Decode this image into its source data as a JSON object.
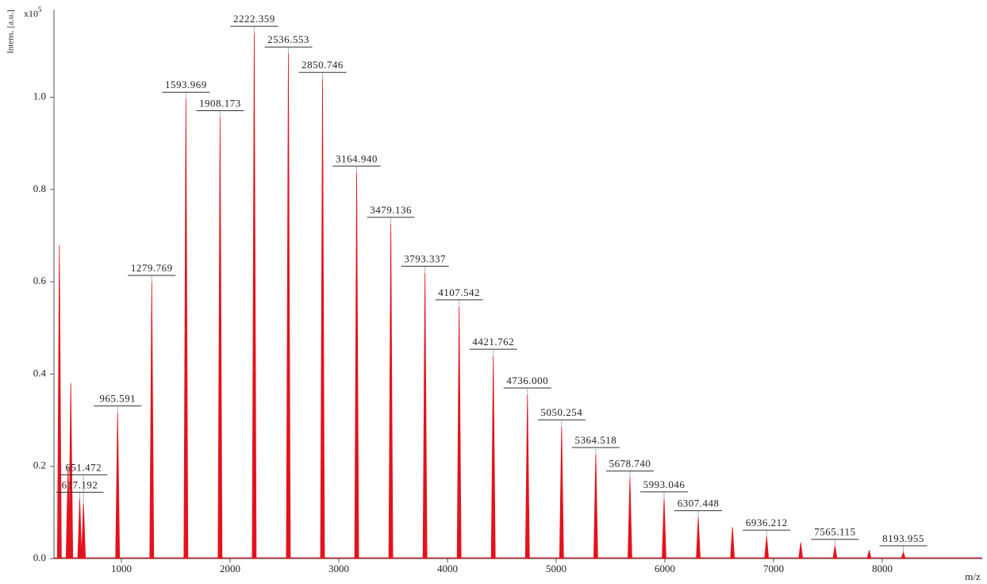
{
  "chart_data": {
    "type": "spectrum",
    "y_label": "Intens. [a.u.]",
    "y_multiplier": "x10",
    "y_multiplier_exponent": "5",
    "x_label": "m/z",
    "color": "#e4121c",
    "grid": false,
    "xlim": [
      380,
      8920
    ],
    "xticks": [
      1000,
      2000,
      3000,
      4000,
      5000,
      6000,
      7000,
      8000
    ],
    "ylim": [
      0,
      1.19
    ],
    "yticks": [
      {
        "value": 0,
        "label": "0.0"
      },
      0.2,
      0.4,
      0.6,
      0.8,
      {
        "value": 1,
        "label": "1.0"
      }
    ],
    "x": [
      430,
      510,
      535,
      617.192,
      651.472,
      965.591,
      1279.769,
      1593.969,
      1908.173,
      2222.359,
      2536.553,
      2850.746,
      3164.94,
      3479.136,
      3793.337,
      4107.542,
      4421.762,
      4736,
      5050.254,
      5364.518,
      5678.74,
      5993.046,
      6307.448,
      6622,
      6936.212,
      7250,
      7565.115,
      7880,
      8193.955
    ],
    "x_labels": [
      null,
      null,
      null,
      "617.192",
      "651.472",
      "965.591",
      "1279.769",
      "1593.969",
      "1908.173",
      "2222.359",
      "2536.553",
      "2850.746",
      "3164.940",
      "3479.136",
      "3793.337",
      "4107.542",
      "4421.762",
      "4736.000",
      "5050.254",
      "5364.518",
      "5678.740",
      "5993.046",
      "6307.448",
      null,
      "6936.212",
      null,
      "7565.115",
      null,
      "8193.955"
    ],
    "values": [
      0.68,
      0.2,
      0.38,
      0.13,
      0.12,
      0.317,
      0.6,
      0.997,
      0.957,
      1.14,
      1.095,
      1.04,
      0.837,
      0.726,
      0.62,
      0.547,
      0.44,
      0.356,
      0.287,
      0.227,
      0.176,
      0.131,
      0.09,
      0.068,
      0.048,
      0.035,
      0.028,
      0.018,
      0.014
    ]
  }
}
